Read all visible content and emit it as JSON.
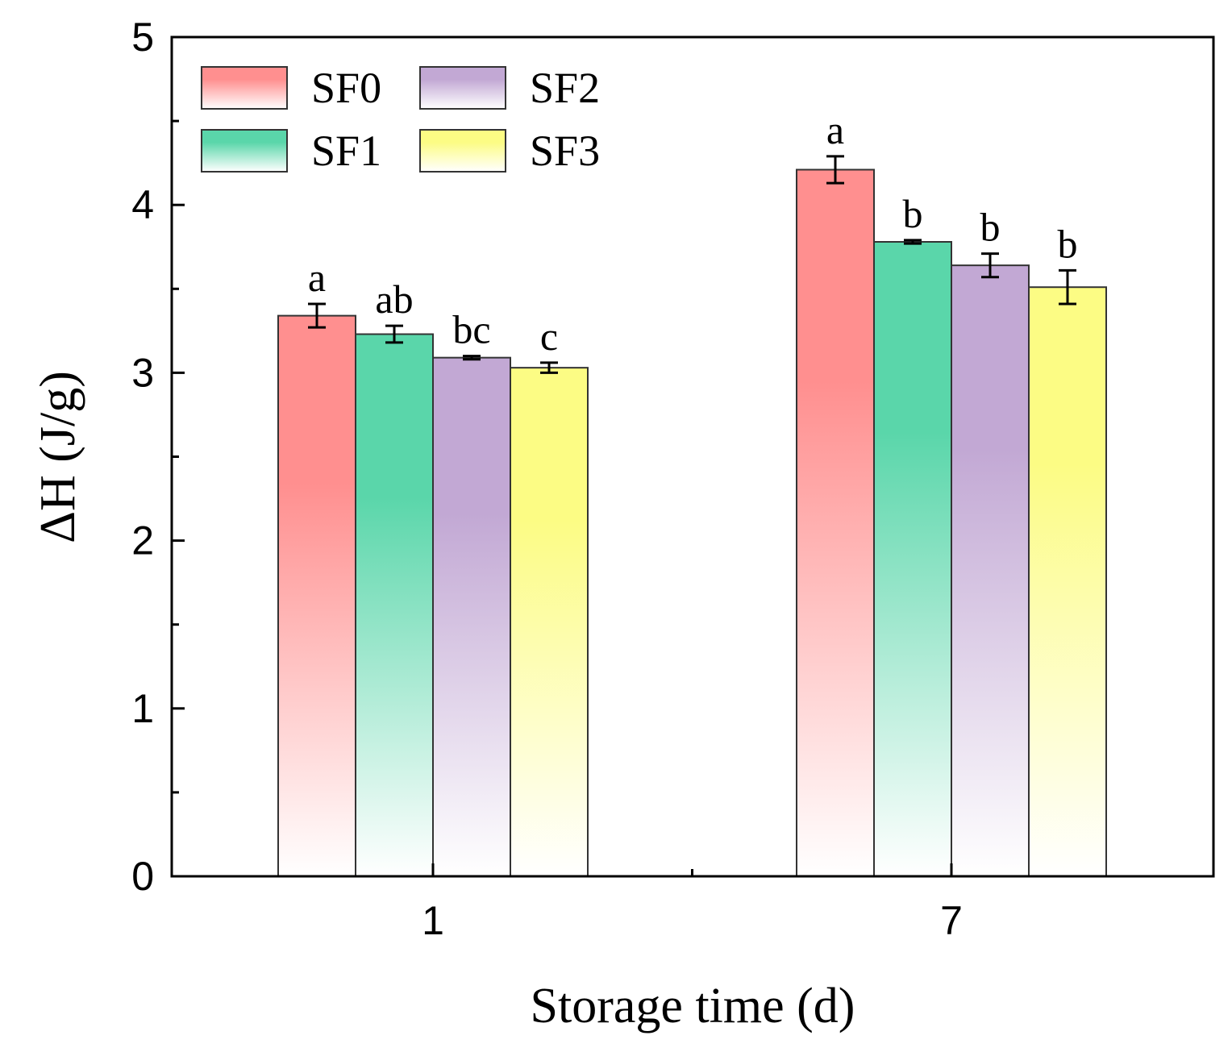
{
  "chart_data": {
    "type": "bar",
    "xlabel": "Storage time (d)",
    "ylabel": "ΔH (J/g)",
    "ylim": [
      0,
      5
    ],
    "yticks": [
      0,
      1,
      2,
      3,
      4,
      5
    ],
    "categories": [
      "1",
      "7"
    ],
    "legend_placement": "top-left",
    "grid": false,
    "series": [
      {
        "name": "SF0",
        "color": "#ff8f8f",
        "values": [
          3.34,
          4.21
        ],
        "errors": [
          0.07,
          0.08
        ],
        "labels": [
          "a",
          "a"
        ]
      },
      {
        "name": "SF1",
        "color": "#5ad6aa",
        "values": [
          3.23,
          3.78
        ],
        "errors": [
          0.05,
          0.01
        ],
        "labels": [
          "ab",
          "b"
        ]
      },
      {
        "name": "SF2",
        "color": "#c2a8d4",
        "values": [
          3.09,
          3.64
        ],
        "errors": [
          0.01,
          0.07
        ],
        "labels": [
          "bc",
          "b"
        ]
      },
      {
        "name": "SF3",
        "color": "#fcfc84",
        "values": [
          3.03,
          3.51
        ],
        "errors": [
          0.03,
          0.1
        ],
        "labels": [
          "c",
          "b"
        ]
      }
    ]
  }
}
